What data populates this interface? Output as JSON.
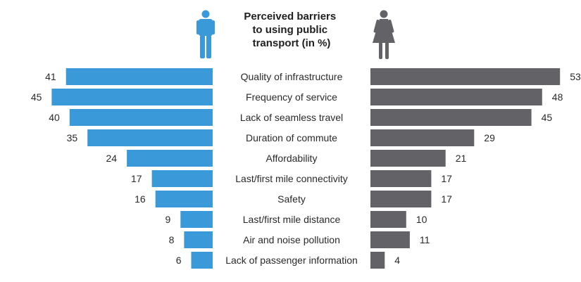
{
  "chart_data": {
    "type": "bar",
    "title_lines": [
      "Perceived barriers",
      "to using public",
      "transport (in %)"
    ],
    "categories": [
      "Quality of infrastructure",
      "Frequency of service",
      "Lack of seamless travel",
      "Duration of commute",
      "Affordability",
      "Last/first mile connectivity",
      "Safety",
      "Last/first mile distance",
      "Air and noise pollution",
      "Lack of passenger information"
    ],
    "series": [
      {
        "icon": "male-icon",
        "color": "#3a9ad9",
        "values": [
          41,
          45,
          40,
          35,
          24,
          17,
          16,
          9,
          8,
          6
        ]
      },
      {
        "icon": "female-icon",
        "color": "#636266",
        "values": [
          53,
          48,
          45,
          29,
          21,
          17,
          17,
          10,
          11,
          4
        ]
      }
    ],
    "xlim": [
      0,
      55
    ],
    "grid": false,
    "legend": "icons-top"
  }
}
